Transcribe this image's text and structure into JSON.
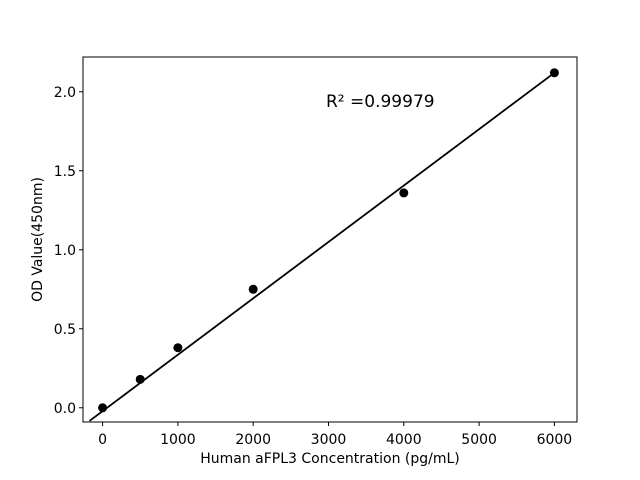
{
  "figure": {
    "background": "#ffffff"
  },
  "chart_data": {
    "type": "scatter",
    "title": "",
    "xlabel": "Human aFPL3 Concentration (pg/mL)",
    "ylabel": "OD Value(450nm)",
    "annotation": "R² =0.99979",
    "x": [
      0,
      500,
      1000,
      2000,
      4000,
      6000
    ],
    "y": [
      0.0,
      0.18,
      0.38,
      0.75,
      1.36,
      2.12
    ],
    "fit_line": {
      "x": [
        -165,
        6000
      ],
      "y": [
        -0.08,
        2.12
      ]
    },
    "xlim": [
      -260,
      6300
    ],
    "ylim": [
      -0.09,
      2.22
    ],
    "xticks": {
      "values": [
        0,
        1000,
        2000,
        3000,
        4000,
        5000,
        6000
      ],
      "labels": [
        "0",
        "1000",
        "2000",
        "3000",
        "4000",
        "5000",
        "6000"
      ]
    },
    "yticks": {
      "values": [
        0,
        0.5,
        1.0,
        1.5,
        2.0
      ],
      "labels": [
        "0.0",
        "0.5",
        "1.0",
        "1.5",
        "2.0"
      ]
    },
    "grid": false,
    "legend_position": "none",
    "marker": {
      "shape": "circle",
      "color": "#000000",
      "size": 9
    },
    "line_color": "#000000",
    "axis_color": "#000000",
    "text_color": "#000000"
  }
}
